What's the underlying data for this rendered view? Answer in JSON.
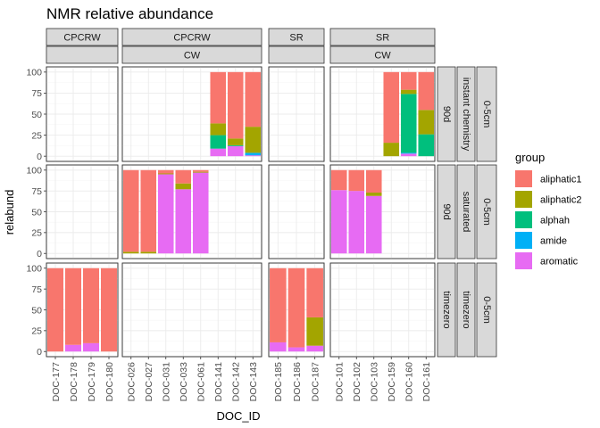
{
  "chart_data": {
    "type": "bar",
    "title": "NMR relative abundance",
    "xlabel": "DOC_ID",
    "ylabel": "relabund",
    "ylim": [
      0,
      100
    ],
    "yticks": [
      "0",
      "25",
      "50",
      "75",
      "100"
    ],
    "legend": {
      "title": "group",
      "placement": "right",
      "entries": [
        {
          "name": "aliphatic1",
          "color": "#F8766D"
        },
        {
          "name": "aliphatic2",
          "color": "#A3A500"
        },
        {
          "name": "alphah",
          "color": "#00BF7D"
        },
        {
          "name": "amide",
          "color": "#00B0F6"
        },
        {
          "name": "aromatic",
          "color": "#E76BF3"
        }
      ]
    },
    "stack_order_bottom_to_top": [
      "aromatic",
      "amide",
      "alphah",
      "aliphatic2",
      "aliphatic1"
    ],
    "column_facets": [
      {
        "site": "CPCRW",
        "subsite": "",
        "categories": [
          "DOC-177",
          "DOC-178",
          "DOC-179",
          "DOC-180"
        ]
      },
      {
        "site": "CPCRW",
        "subsite": "CW",
        "categories": [
          "DOC-026",
          "DOC-027",
          "DOC-031",
          "DOC-033",
          "DOC-061",
          "DOC-141",
          "DOC-142",
          "DOC-143"
        ]
      },
      {
        "site": "SR",
        "subsite": "",
        "categories": [
          "DOC-185",
          "DOC-186",
          "DOC-187"
        ]
      },
      {
        "site": "SR",
        "subsite": "CW",
        "categories": [
          "DOC-101",
          "DOC-102",
          "DOC-103",
          "DOC-159",
          "DOC-160",
          "DOC-161"
        ]
      }
    ],
    "row_facets": [
      {
        "time": "90d",
        "treatment": "instant chemistry",
        "depth": "0-5cm"
      },
      {
        "time": "90d",
        "treatment": "saturated",
        "depth": "0-5cm"
      },
      {
        "time": "timezero",
        "treatment": "timezero",
        "depth": "0-5cm"
      }
    ],
    "bars": [
      {
        "row": 0,
        "col": 1,
        "category": "DOC-141",
        "aromatic": 9,
        "amide": 0,
        "alphah": 16,
        "aliphatic2": 14,
        "aliphatic1": 61
      },
      {
        "row": 0,
        "col": 1,
        "category": "DOC-142",
        "aromatic": 12,
        "amide": 0,
        "alphah": 1,
        "aliphatic2": 8,
        "aliphatic1": 79
      },
      {
        "row": 0,
        "col": 1,
        "category": "DOC-143",
        "aromatic": 1,
        "amide": 3,
        "alphah": 0,
        "aliphatic2": 31,
        "aliphatic1": 65
      },
      {
        "row": 0,
        "col": 3,
        "category": "DOC-159",
        "aromatic": 0,
        "amide": 0,
        "alphah": 0,
        "aliphatic2": 16,
        "aliphatic1": 84
      },
      {
        "row": 0,
        "col": 3,
        "category": "DOC-160",
        "aromatic": 3,
        "amide": 1,
        "alphah": 70,
        "aliphatic2": 5,
        "aliphatic1": 21
      },
      {
        "row": 0,
        "col": 3,
        "category": "DOC-161",
        "aromatic": 0,
        "amide": 0,
        "alphah": 26,
        "aliphatic2": 29,
        "aliphatic1": 45
      },
      {
        "row": 1,
        "col": 1,
        "category": "DOC-026",
        "aromatic": 0,
        "amide": 0,
        "alphah": 0,
        "aliphatic2": 2,
        "aliphatic1": 98
      },
      {
        "row": 1,
        "col": 1,
        "category": "DOC-027",
        "aromatic": 0,
        "amide": 0,
        "alphah": 0,
        "aliphatic2": 2,
        "aliphatic1": 98
      },
      {
        "row": 1,
        "col": 1,
        "category": "DOC-031",
        "aromatic": 95,
        "amide": 0,
        "alphah": 0,
        "aliphatic2": 1,
        "aliphatic1": 4
      },
      {
        "row": 1,
        "col": 1,
        "category": "DOC-033",
        "aromatic": 77,
        "amide": 0,
        "alphah": 0,
        "aliphatic2": 7,
        "aliphatic1": 16
      },
      {
        "row": 1,
        "col": 1,
        "category": "DOC-061",
        "aromatic": 97,
        "amide": 0,
        "alphah": 0,
        "aliphatic2": 1,
        "aliphatic1": 2
      },
      {
        "row": 1,
        "col": 3,
        "category": "DOC-101",
        "aromatic": 76,
        "amide": 0,
        "alphah": 0,
        "aliphatic2": 0,
        "aliphatic1": 24
      },
      {
        "row": 1,
        "col": 3,
        "category": "DOC-102",
        "aromatic": 75,
        "amide": 0,
        "alphah": 0,
        "aliphatic2": 0,
        "aliphatic1": 25
      },
      {
        "row": 1,
        "col": 3,
        "category": "DOC-103",
        "aromatic": 69,
        "amide": 0,
        "alphah": 0,
        "aliphatic2": 4,
        "aliphatic1": 27
      },
      {
        "row": 2,
        "col": 0,
        "category": "DOC-177",
        "aromatic": 0,
        "amide": 0,
        "alphah": 0,
        "aliphatic2": 0,
        "aliphatic1": 100
      },
      {
        "row": 2,
        "col": 0,
        "category": "DOC-178",
        "aromatic": 8,
        "amide": 0,
        "alphah": 0,
        "aliphatic2": 0,
        "aliphatic1": 92
      },
      {
        "row": 2,
        "col": 0,
        "category": "DOC-179",
        "aromatic": 10,
        "amide": 0,
        "alphah": 0,
        "aliphatic2": 0,
        "aliphatic1": 90
      },
      {
        "row": 2,
        "col": 0,
        "category": "DOC-180",
        "aromatic": 0,
        "amide": 0,
        "alphah": 0,
        "aliphatic2": 0,
        "aliphatic1": 100
      },
      {
        "row": 2,
        "col": 2,
        "category": "DOC-185",
        "aromatic": 11,
        "amide": 0,
        "alphah": 0,
        "aliphatic2": 0,
        "aliphatic1": 89
      },
      {
        "row": 2,
        "col": 2,
        "category": "DOC-186",
        "aromatic": 5,
        "amide": 0,
        "alphah": 0,
        "aliphatic2": 0,
        "aliphatic1": 95
      },
      {
        "row": 2,
        "col": 2,
        "category": "DOC-187",
        "aromatic": 7,
        "amide": 0,
        "alphah": 0,
        "aliphatic2": 34,
        "aliphatic1": 59
      }
    ]
  }
}
